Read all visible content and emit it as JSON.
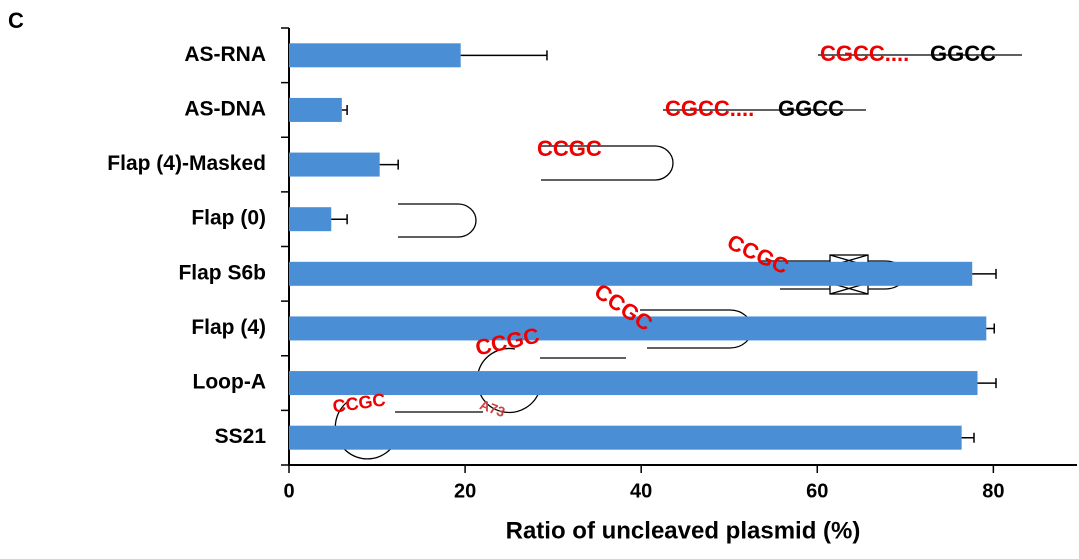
{
  "chart_data": {
    "type": "bar",
    "orientation": "horizontal",
    "panel_label": "C",
    "xlabel": "Ratio of uncleaved plasmid (%)",
    "categories": [
      "AS-RNA",
      "AS-DNA",
      "Flap (4)-Masked",
      "Flap (0)",
      "Flap S6b",
      "Flap (4)",
      "Loop-A",
      "SS21"
    ],
    "values": [
      19.5,
      6.0,
      10.3,
      4.8,
      77.6,
      79.2,
      78.2,
      76.4
    ],
    "errors": [
      9.8,
      0.6,
      2.1,
      1.8,
      2.7,
      0.9,
      2.1,
      1.4
    ],
    "color": "#4a8fd6",
    "xlim": [
      0,
      89.5
    ],
    "xticks": [
      0,
      20,
      40,
      60,
      80
    ],
    "annotations": [
      "CGCC....",
      "GGCC",
      "CGCC....",
      "GGCC",
      "CCGC",
      "CCGC",
      "CCGC",
      "CCGC",
      "A73",
      "CCGC"
    ]
  }
}
